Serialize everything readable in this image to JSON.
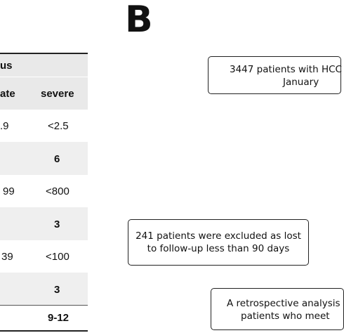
{
  "panel_label": "B",
  "table": {
    "header_fragment": "us",
    "subheader_fragment": "ate",
    "severe_header": "severe",
    "rows": [
      {
        "left": ".9",
        "severe": "<2.5",
        "severe_bold": false
      },
      {
        "left": "",
        "severe": "6",
        "severe_bold": true
      },
      {
        "left": "99",
        "severe": "<800",
        "severe_bold": false
      },
      {
        "left": "",
        "severe": "3",
        "severe_bold": true
      },
      {
        "left": "39",
        "severe": "<100",
        "severe_bold": false
      },
      {
        "left": "",
        "severe": "3",
        "severe_bold": true
      },
      {
        "left": "",
        "severe": "9-12",
        "severe_bold": true
      }
    ]
  },
  "flowchart": {
    "box1": {
      "line1": "3447 patients with HCC",
      "line2": "January"
    },
    "box2": {
      "line1": "241 patients were excluded as lost",
      "line2": "to follow-up less than 90 days"
    },
    "box3": {
      "line1": "A retrospective analysis",
      "line2": "patients who meet"
    }
  }
}
